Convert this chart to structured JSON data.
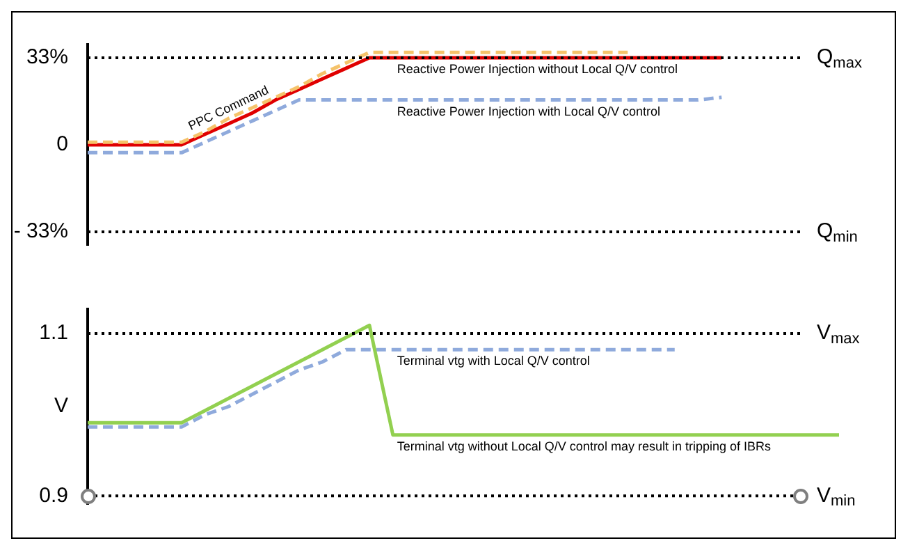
{
  "chart_data": [
    {
      "type": "line",
      "categories": [
        null,
        null,
        null,
        null,
        null,
        null,
        null,
        null,
        null,
        null,
        null,
        null,
        null,
        null,
        null,
        null,
        null,
        null,
        null,
        null,
        null,
        null,
        null,
        null,
        null,
        null,
        null,
        null,
        null,
        null,
        null,
        null,
        null
      ],
      "ylim": [
        -38,
        38
      ],
      "yticks": [
        {
          "value": 33,
          "label": "33%"
        },
        0,
        {
          "value": -33,
          "label": "- 33%"
        }
      ],
      "tick_labels": "y",
      "grid": false,
      "legend": false,
      "series": [
        {
          "name": "PPC Command",
          "color": "#f5c36b",
          "line_style": "dashed",
          "values": [
            1,
            1,
            1,
            1,
            1,
            5,
            10,
            14,
            18,
            22,
            27,
            31,
            35,
            35,
            35,
            35,
            35,
            35,
            35,
            35,
            35,
            35,
            35,
            35,
            null,
            null,
            null,
            null,
            null,
            null,
            null,
            null,
            null
          ]
        },
        {
          "name": "Reactive Power Injection without Local Q/V control",
          "color": "#e00000",
          "line_style": "solid",
          "values": [
            0,
            0,
            0,
            0,
            0,
            4,
            8,
            12,
            17,
            21,
            25,
            29,
            33,
            33,
            33,
            33,
            33,
            33,
            33,
            33,
            33,
            33,
            33,
            33,
            33,
            33,
            33,
            33,
            null,
            null,
            null,
            null,
            null
          ]
        },
        {
          "name": "Reactive Power Injection with Local Q/V control",
          "color": "#8faadc",
          "line_style": "dashed",
          "values": [
            -3,
            -3,
            -3,
            -3,
            -3,
            1,
            5,
            9,
            13,
            17,
            17,
            17,
            17,
            17,
            17,
            17,
            17,
            17,
            17,
            17,
            17,
            17,
            17,
            17,
            17,
            17,
            17,
            18,
            null,
            null,
            null,
            null,
            null
          ]
        }
      ],
      "ref_lines": [
        {
          "axis": "y",
          "value": 33,
          "label": "Q$_{max}$",
          "color": "#000000",
          "line_style": "dotted"
        },
        {
          "axis": "y",
          "value": -33,
          "label": "Q$_{min}$",
          "color": "#000000",
          "line_style": "dotted"
        }
      ]
    },
    {
      "type": "line",
      "categories": [
        null,
        null,
        null,
        null,
        null,
        null,
        null,
        null,
        null,
        null,
        null,
        null,
        null,
        null,
        null,
        null,
        null,
        null,
        null,
        null,
        null,
        null,
        null,
        null,
        null,
        null,
        null,
        null,
        null,
        null,
        null,
        null,
        null
      ],
      "ylim": [
        0.89,
        1.13
      ],
      "yticks": [
        1.1,
        {
          "value": 1.01,
          "label": "V"
        },
        0.9
      ],
      "tick_labels": "y",
      "grid": false,
      "legend": false,
      "series": [
        {
          "name": "Terminal vtg without Local Q/V control may result in tripping of IBRs",
          "color": "#92d050",
          "line_style": "solid",
          "values": [
            0.99,
            0.99,
            0.99,
            0.99,
            0.99,
            1.005,
            1.02,
            1.035,
            1.05,
            1.065,
            1.08,
            1.095,
            1.11,
            0.975,
            0.975,
            0.975,
            0.975,
            0.975,
            0.975,
            0.975,
            0.975,
            0.975,
            0.975,
            0.975,
            0.975,
            0.975,
            0.975,
            0.975,
            0.975,
            0.975,
            0.975,
            0.975,
            0.975
          ]
        },
        {
          "name": "Terminal vtg with Local Q/V control",
          "color": "#8faadc",
          "line_style": "dashed",
          "values": [
            0.985,
            0.985,
            0.985,
            0.985,
            0.985,
            1.0,
            1.01,
            1.025,
            1.04,
            1.055,
            1.065,
            1.08,
            1.08,
            1.08,
            1.08,
            1.08,
            1.08,
            1.08,
            1.08,
            1.08,
            1.08,
            1.08,
            1.08,
            1.08,
            1.08,
            1.08,
            null,
            null,
            null,
            null,
            null,
            null,
            null
          ]
        }
      ],
      "ref_lines": [
        {
          "axis": "y",
          "value": 1.1,
          "label": "V$_{max}$",
          "color": "#000000",
          "line_style": "dotted"
        },
        {
          "axis": "y",
          "value": 0.9,
          "label": "V$_{min}$",
          "color": "#000000",
          "line_style": "dotted"
        }
      ]
    }
  ]
}
